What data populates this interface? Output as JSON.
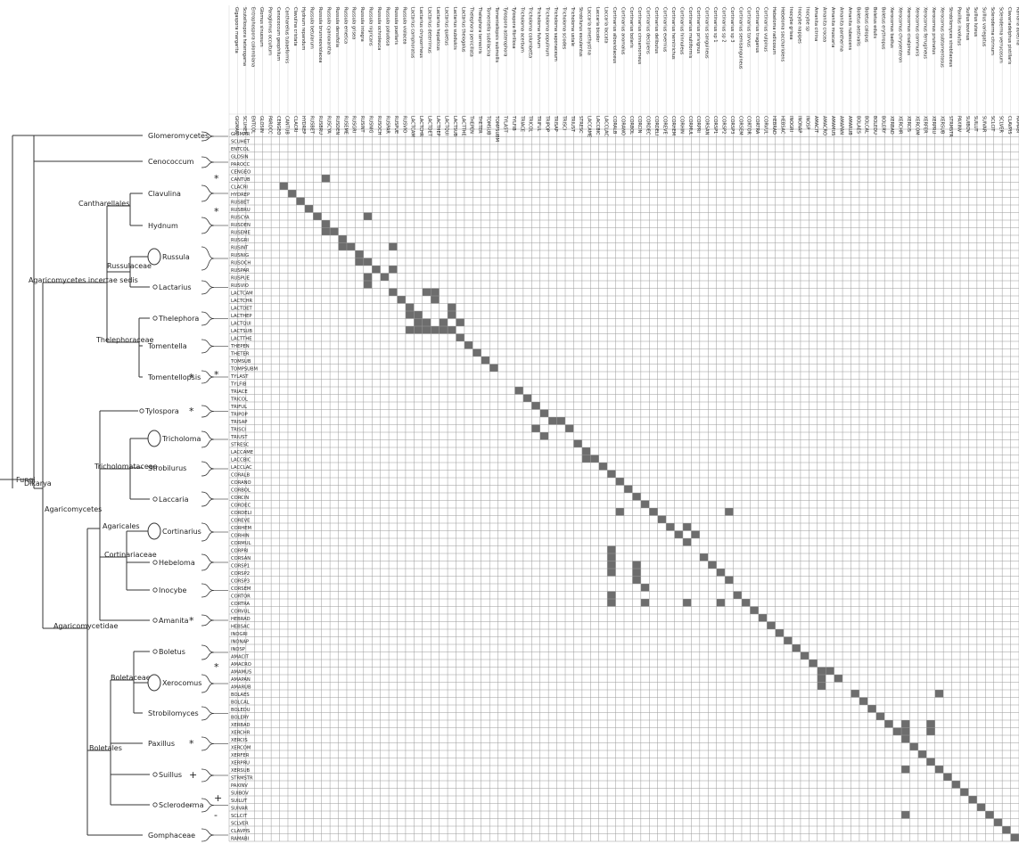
{
  "tree": {
    "root": {
      "label": "Fungi"
    },
    "nodes": [
      {
        "id": "dikarya",
        "label": "Dikarya"
      },
      {
        "id": "agaricomycetes",
        "label": "Agaricomycetes"
      },
      {
        "id": "incertae",
        "label": "Agaricomycetes incertae sedis"
      },
      {
        "id": "agaricomycetidae",
        "label": "Agaricomycetidae"
      },
      {
        "id": "cantharellales",
        "label": "Cantharellales"
      },
      {
        "id": "russulaceae",
        "label": "Russulaceae"
      },
      {
        "id": "thelephoraceae",
        "label": "Thelephoraceae"
      },
      {
        "id": "tricholomataceae",
        "label": "Tricholomataceae"
      },
      {
        "id": "agaricales",
        "label": "Agaricales"
      },
      {
        "id": "cortinariaceae",
        "label": "Cortinariaceae"
      },
      {
        "id": "boletaceae",
        "label": "Boletaceae"
      },
      {
        "id": "boletales",
        "label": "Boletales"
      }
    ],
    "leaves": [
      {
        "label": "Glomeromycetes",
        "marker": ""
      },
      {
        "label": "Cenococcum",
        "marker": ""
      },
      {
        "label": "Clavulina",
        "marker": ""
      },
      {
        "label": "Hydnum",
        "marker": ""
      },
      {
        "label": "Russula",
        "marker": ""
      },
      {
        "label": "Lactarius",
        "marker": ""
      },
      {
        "label": "Thelephora",
        "marker": ""
      },
      {
        "label": "Tomentella",
        "marker": ""
      },
      {
        "label": "Tomentellopsis",
        "marker": "*"
      },
      {
        "label": "Tylospora",
        "marker": "*"
      },
      {
        "label": "Tricholoma",
        "marker": ""
      },
      {
        "label": "Strobilurus",
        "marker": ""
      },
      {
        "label": "Laccaria",
        "marker": ""
      },
      {
        "label": "Cortinarius",
        "marker": ""
      },
      {
        "label": "Hebeloma",
        "marker": ""
      },
      {
        "label": "Inocybe",
        "marker": ""
      },
      {
        "label": "Amanita",
        "marker": "*"
      },
      {
        "label": "Boletus",
        "marker": ""
      },
      {
        "label": "Xerocomus",
        "marker": ""
      },
      {
        "label": "Strobilomyces",
        "marker": ""
      },
      {
        "label": "Paxillus",
        "marker": "*"
      },
      {
        "label": "Suillus",
        "marker": "+"
      },
      {
        "label": "Scleroderma",
        "marker": "-"
      },
      {
        "label": "Gomphaceae",
        "marker": ""
      }
    ],
    "side_marks": [
      "*",
      "*",
      "*",
      "*",
      "+",
      "-"
    ]
  },
  "matrix": {
    "codes": [
      "GIGMAR",
      "SCUHET",
      "ENTCOL",
      "GLOSIN",
      "PAROCC",
      "CENGEO",
      "CANTUB",
      "CLACRI",
      "HYDREP",
      "RUSBET",
      "RUSBRU",
      "RUSCYA",
      "RUSDEN",
      "RUSEME",
      "RUSGRI",
      "RUSINT",
      "RUSNIG",
      "RUSOCH",
      "RUSPAR",
      "RUSPUE",
      "RUSVIO",
      "LACTCAM",
      "LACTCHR",
      "LACTDET",
      "LACTHEP",
      "LACTQUI",
      "LACTSUB",
      "LACTTHE",
      "THEPEN",
      "THETER",
      "TOMSUB",
      "TOMPSUBM",
      "TYLAST",
      "TYLFIB",
      "TRIACE",
      "TRICOL",
      "TRIFUL",
      "TRIPOP",
      "TRISAP",
      "TRISCI",
      "TRIUST",
      "STRESC",
      "LACCAME",
      "LACCBIC",
      "LACCLAC",
      "CORALB",
      "CORANO",
      "CORBOL",
      "CORCIN",
      "CORDEC",
      "CORDELI",
      "COREVE",
      "CORHEM",
      "CORHIN",
      "CORMUL",
      "CORPRI",
      "CORSAN",
      "CORSP1",
      "CORSP2",
      "CORSP3",
      "CORSEM",
      "CORTOR",
      "CORTRA",
      "CORVUL",
      "HEBRAD",
      "HEBSAC",
      "INOGRI",
      "INONAP",
      "INOSP",
      "AMACIT",
      "AMACRO",
      "AMAMUS",
      "AMAPAN",
      "AMARUB",
      "BOLAES",
      "BOLCAL",
      "BOLEDU",
      "BOLERY",
      "XERBAD",
      "XERCHR",
      "XERCIS",
      "XERCOM",
      "XERFER",
      "XERPRU",
      "XERSUB",
      "STRMSTR",
      "PAXINV",
      "SUIBOV",
      "SUILUT",
      "SUIVAR",
      "SCLCIT",
      "SCLVER",
      "CLAVPIS",
      "RAMABI"
    ],
    "species": [
      "Gigaspora margarita",
      "Scutellospora heterogama",
      "Entrophospora colombiana",
      "Glomus sinuosum",
      "Paraglomus occultum",
      "Cenococcum geophilum",
      "Cantharellus tubaeformis",
      "Clavulina cristata",
      "Hydnum repandum",
      "Russula betularum",
      "Russula brunneoviolacea",
      "Russula cyanoxantha",
      "Russula densifolia",
      "Russula emetica",
      "Russula grisea",
      "Russula integra",
      "Russula nigricans",
      "Russula ochroleuca",
      "Russula paludosa",
      "Russula puellaris",
      "Russula violacea",
      "Lactarius camphoratus",
      "Lactarius chrysorrheus",
      "Lactarius deterrimus",
      "Lactarius hepaticus",
      "Lactarius quietus",
      "Lactarius subdulcis",
      "Lactarius theiogalus",
      "Thelephora penicillata",
      "Thelephora terrestris",
      "Tomentella sublilacina",
      "Tomentellopsis submollis",
      "Tylospora asterophora",
      "Tylospora fibrillosa",
      "Tricholoma acerbum",
      "Tricholoma columbetta",
      "Tricholoma fulvum",
      "Tricholoma populinum",
      "Tricholoma saponaceum",
      "Tricholoma sciodes",
      "Tricholoma ustale",
      "Strobilurus esculentus",
      "Laccaria amethystina",
      "Laccaria bicolor",
      "Laccaria laccata",
      "Cortinarius alboviolaceus",
      "Cortinarius anomalus",
      "Cortinarius bolaris",
      "Cortinarius cinnamomeus",
      "Cortinarius decipiens",
      "Cortinarius delibutus",
      "Cortinarius evernius",
      "Cortinarius hemitrichus",
      "Cortinarius hinnuleus",
      "Cortinarius multiformis",
      "Cortinarius privignus",
      "Cortinarius sanguineus",
      "Cortinarius sp 1",
      "Cortinarius sp 2",
      "Cortinarius sp 3",
      "Cortinarius semisanguineus",
      "Cortinarius torvus",
      "Cortinarius traganus",
      "Cortinarius vulpinus",
      "Hebeloma radicosum",
      "Hebeloma sacchariolens",
      "Inocybe grisea",
      "Inocybe napipes",
      "Inocybe sp",
      "Amanita citrina",
      "Amanita crocea",
      "Amanita muscaria",
      "Amanita pantherina",
      "Amanita rubescens",
      "Boletus aestivalis",
      "Boletus calopus",
      "Boletus edulis",
      "Boletus erythropus",
      "Xerocomus badius",
      "Xerocomus chrysenteron",
      "Xerocomus cisalpinus",
      "Xerocomus communis",
      "Xerocomus ferrugineus",
      "Xerocomus pruinatus",
      "Xerocomus subtomentosus",
      "Strobilomyces strobilaceus",
      "Paxillus involutus",
      "Suillus bovinus",
      "Suillus luteus",
      "Suillus variegatus",
      "Scleroderma citrinum",
      "Scleroderma verrucosum",
      "Clavariadelphus pistillaris",
      "Ramaria abietina"
    ],
    "filled_cells": [
      [
        6,
        11
      ],
      [
        7,
        6
      ],
      [
        8,
        7
      ],
      [
        9,
        8
      ],
      [
        10,
        9
      ],
      [
        11,
        10
      ],
      [
        11,
        16
      ],
      [
        12,
        11
      ],
      [
        13,
        12
      ],
      [
        14,
        13
      ],
      [
        13,
        11
      ],
      [
        15,
        13
      ],
      [
        15,
        14
      ],
      [
        15,
        19
      ],
      [
        16,
        15
      ],
      [
        17,
        15
      ],
      [
        17,
        16
      ],
      [
        18,
        17
      ],
      [
        18,
        19
      ],
      [
        19,
        16
      ],
      [
        19,
        18
      ],
      [
        20,
        16
      ],
      [
        21,
        19
      ],
      [
        22,
        20
      ],
      [
        23,
        21
      ],
      [
        24,
        22
      ],
      [
        21,
        23
      ],
      [
        21,
        24
      ],
      [
        22,
        24
      ],
      [
        25,
        25
      ],
      [
        25,
        23
      ],
      [
        26,
        26
      ],
      [
        26,
        23
      ],
      [
        26,
        24
      ],
      [
        26,
        25
      ],
      [
        24,
        21
      ],
      [
        25,
        22
      ],
      [
        26,
        21
      ],
      [
        26,
        22
      ],
      [
        23,
        26
      ],
      [
        24,
        26
      ],
      [
        25,
        27
      ],
      [
        27,
        27
      ],
      [
        28,
        28
      ],
      [
        29,
        29
      ],
      [
        30,
        30
      ],
      [
        31,
        31
      ],
      [
        34,
        34
      ],
      [
        35,
        35
      ],
      [
        36,
        36
      ],
      [
        37,
        37
      ],
      [
        38,
        38
      ],
      [
        38,
        39
      ],
      [
        39,
        36
      ],
      [
        39,
        40
      ],
      [
        40,
        37
      ],
      [
        41,
        41
      ],
      [
        42,
        42
      ],
      [
        43,
        42
      ],
      [
        43,
        43
      ],
      [
        44,
        44
      ],
      [
        45,
        45
      ],
      [
        46,
        46
      ],
      [
        47,
        47
      ],
      [
        48,
        48
      ],
      [
        49,
        49
      ],
      [
        50,
        46
      ],
      [
        50,
        50
      ],
      [
        50,
        59
      ],
      [
        51,
        51
      ],
      [
        52,
        52
      ],
      [
        52,
        54
      ],
      [
        53,
        53
      ],
      [
        53,
        55
      ],
      [
        54,
        54
      ],
      [
        55,
        45
      ],
      [
        56,
        45
      ],
      [
        56,
        56
      ],
      [
        57,
        45
      ],
      [
        57,
        48
      ],
      [
        57,
        57
      ],
      [
        58,
        45
      ],
      [
        58,
        48
      ],
      [
        58,
        58
      ],
      [
        59,
        48
      ],
      [
        59,
        59
      ],
      [
        60,
        49
      ],
      [
        61,
        60
      ],
      [
        61,
        45
      ],
      [
        62,
        45
      ],
      [
        62,
        49
      ],
      [
        62,
        54
      ],
      [
        62,
        58
      ],
      [
        62,
        61
      ],
      [
        63,
        62
      ],
      [
        64,
        63
      ],
      [
        65,
        64
      ],
      [
        66,
        65
      ],
      [
        67,
        66
      ],
      [
        68,
        67
      ],
      [
        69,
        68
      ],
      [
        70,
        69
      ],
      [
        71,
        70
      ],
      [
        71,
        71
      ],
      [
        72,
        70
      ],
      [
        72,
        72
      ],
      [
        73,
        70
      ],
      [
        74,
        74
      ],
      [
        74,
        84
      ],
      [
        75,
        75
      ],
      [
        76,
        76
      ],
      [
        77,
        77
      ],
      [
        78,
        78
      ],
      [
        78,
        80
      ],
      [
        78,
        83
      ],
      [
        79,
        79
      ],
      [
        79,
        80
      ],
      [
        79,
        83
      ],
      [
        80,
        80
      ],
      [
        81,
        81
      ],
      [
        82,
        82
      ],
      [
        83,
        83
      ],
      [
        84,
        84
      ],
      [
        84,
        80
      ],
      [
        85,
        85
      ],
      [
        86,
        86
      ],
      [
        87,
        87
      ],
      [
        88,
        88
      ],
      [
        89,
        89
      ],
      [
        90,
        90
      ],
      [
        90,
        80
      ],
      [
        91,
        91
      ],
      [
        92,
        92
      ],
      [
        93,
        93
      ]
    ]
  }
}
